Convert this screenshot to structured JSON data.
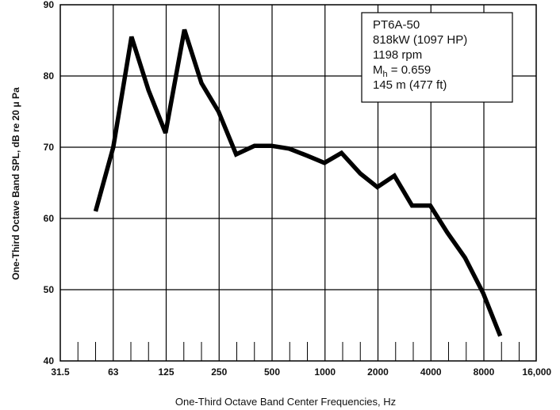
{
  "chart_data": {
    "type": "line",
    "xlabel": "One-Third Octave Band Center Frequencies, Hz",
    "ylabel": "One-Third Octave Band SPL, dB re 20 μ Pa",
    "x_scale": "log",
    "xlim": [
      31.5,
      16000
    ],
    "ylim": [
      40,
      90
    ],
    "grid": true,
    "x_ticks": [
      "31.5",
      "63",
      "125",
      "250",
      "500",
      "1000",
      "2000",
      "4000",
      "8000",
      "16,000"
    ],
    "y_ticks": [
      "40",
      "50",
      "60",
      "70",
      "80",
      "90"
    ],
    "annotation": {
      "line1": "PT6A-50",
      "line2": "818kW (1097 HP)",
      "line3": "1198 rpm",
      "line4_main": "M",
      "line4_sub": "h",
      "line4_rest": " = 0.659",
      "line5": "145 m (477 ft)"
    },
    "series": [
      {
        "x": [
          50,
          63,
          80,
          100,
          125,
          160,
          200,
          250,
          315,
          400,
          500,
          630,
          800,
          1000,
          1250,
          1600,
          2000,
          2500,
          3150,
          4000,
          5000,
          6300,
          8000,
          10000
        ],
        "y": [
          61,
          70,
          85.5,
          78,
          72,
          86.5,
          79,
          75,
          69,
          70.2,
          70.2,
          69.8,
          68.8,
          67.8,
          69.2,
          66.3,
          64.4,
          66,
          61.8,
          61.8,
          58,
          54.5,
          49.5,
          43.5
        ]
      }
    ]
  }
}
